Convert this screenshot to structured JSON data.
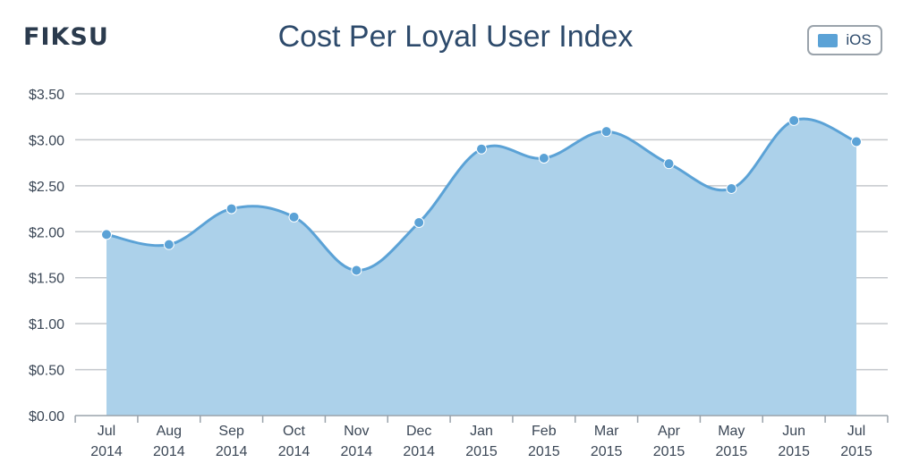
{
  "brand": {
    "logo_text": "FIKSU"
  },
  "chart_data": {
    "type": "area",
    "title": "Cost Per Loyal User Index",
    "xlabel": "",
    "ylabel": "",
    "ylim": [
      0,
      3.5
    ],
    "yticks": [
      "$0.00",
      "$0.50",
      "$1.00",
      "$1.50",
      "$2.00",
      "$2.50",
      "$3.00",
      "$3.50"
    ],
    "ytick_values": [
      0,
      0.5,
      1.0,
      1.5,
      2.0,
      2.5,
      3.0,
      3.5
    ],
    "categories": [
      [
        "Jul",
        "2014"
      ],
      [
        "Aug",
        "2014"
      ],
      [
        "Sep",
        "2014"
      ],
      [
        "Oct",
        "2014"
      ],
      [
        "Nov",
        "2014"
      ],
      [
        "Dec",
        "2014"
      ],
      [
        "Jan",
        "2015"
      ],
      [
        "Feb",
        "2015"
      ],
      [
        "Mar",
        "2015"
      ],
      [
        "Apr",
        "2015"
      ],
      [
        "May",
        "2015"
      ],
      [
        "Jun",
        "2015"
      ],
      [
        "Jul",
        "2015"
      ]
    ],
    "series": [
      {
        "name": "iOS",
        "color": "#5ba2d6",
        "fill": "#acd1ea",
        "values": [
          1.97,
          1.86,
          2.25,
          2.16,
          1.58,
          2.1,
          2.9,
          2.8,
          3.09,
          2.74,
          2.47,
          3.21,
          2.98
        ]
      }
    ],
    "legend": {
      "label": "iOS",
      "position": "top-right"
    },
    "grid": true,
    "axis_color": "#9aa3ab",
    "grid_color": "#c4c8cc",
    "text_color": "#3b4756",
    "title_color": "#2d4a6b"
  }
}
